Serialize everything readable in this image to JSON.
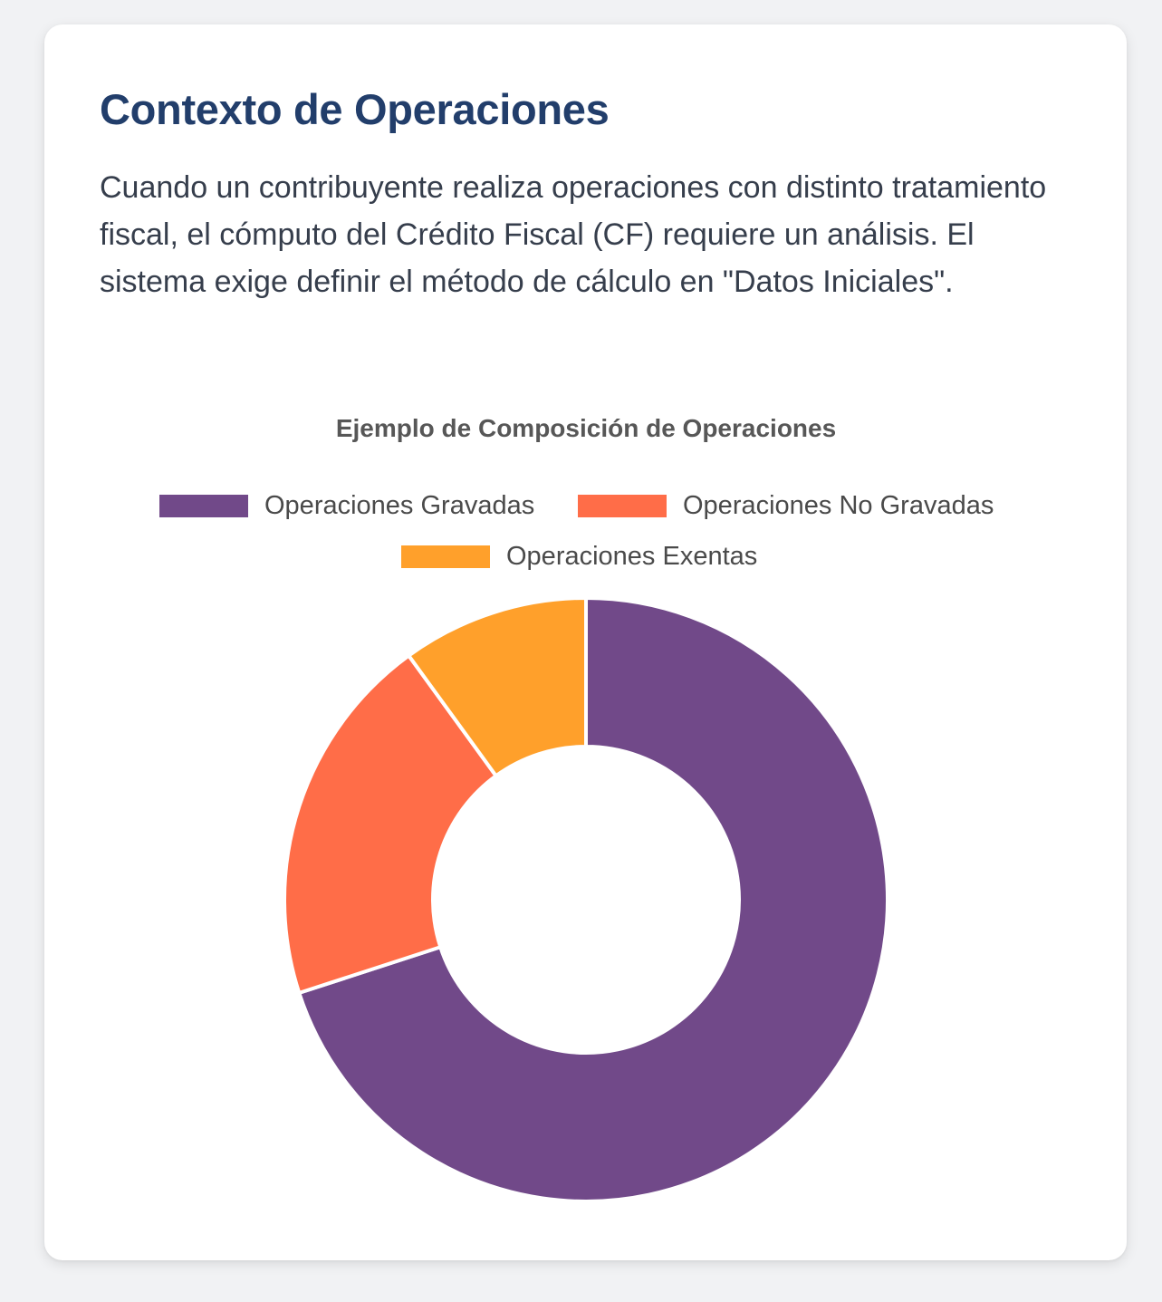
{
  "card": {
    "title": "Contexto de Operaciones",
    "text": "Cuando un contribuyente realiza operaciones con distinto tratamiento fiscal, el cómputo del Crédito Fiscal (CF) requiere un análisis. El sistema exige definir el método de cálculo en \"Datos Iniciales\"."
  },
  "chart_data": {
    "type": "pie",
    "variant": "doughnut",
    "title": "Ejemplo de Composición de Operaciones",
    "categories": [
      "Operaciones Gravadas",
      "Operaciones No Gravadas",
      "Operaciones Exentas"
    ],
    "values": [
      70,
      20,
      10
    ],
    "colors": [
      "#714989",
      "#ff6d48",
      "#ffa02b"
    ],
    "legend_position": "top"
  }
}
